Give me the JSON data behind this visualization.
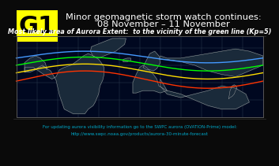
{
  "background_color": "#0a0a0a",
  "title_line1": "Minor geomagnetic storm watch continues:",
  "title_line2": "08 November – 11 November",
  "subtitle": "Most likely area of Aurora Extent:  to the vicinity of the green line (Kp=5)",
  "footer_line1": "For updating aurora visibility information go to the SWPC aurora (OVATION-Prime) model:",
  "footer_line2": "http://www.swpc.noaa.gov/products/aurora-30-minute-forecast",
  "g1_box_color": "#ffff00",
  "g1_text": "G1",
  "map_bg": "#000820",
  "map_border_color": "#555555",
  "title_color": "#ffffff",
  "subtitle_color": "#ffffff",
  "footer_color": "#00aacc",
  "green_line_color": "#00ff00",
  "blue_line_color": "#4499ff",
  "yellow_line_color": "#ffdd00",
  "red_line_color": "#ff3300",
  "land_color": "#1a2a3a",
  "border_color": "#ffffff"
}
